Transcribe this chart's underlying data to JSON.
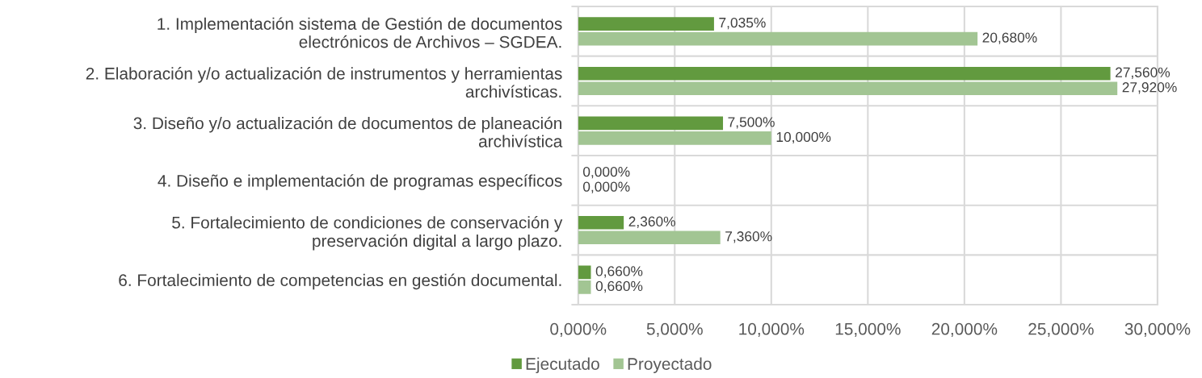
{
  "chart_data": {
    "type": "bar",
    "orientation": "horizontal",
    "categories": [
      "1. Implementación sistema de Gestión de documentos\nelectrónicos de Archivos – SGDEA.",
      "2. Elaboración y/o actualización de instrumentos y herramientas\narchivísticas.",
      "3. Diseño y/o actualización de documentos de planeación\narchivística",
      "4. Diseño e implementación de programas específicos",
      "5. Fortalecimiento de condiciones de conservación y\npreservación digital a largo plazo.",
      "6. Fortalecimiento de competencias en gestión documental."
    ],
    "series": [
      {
        "name": "Ejecutado",
        "color": "#629a3f",
        "values": [
          7.035,
          27.56,
          7.5,
          0,
          2.36,
          0.66
        ],
        "value_labels": [
          "7,035%",
          "27,560%",
          "7,500%",
          "0,000%",
          "2,360%",
          "0,660%"
        ]
      },
      {
        "name": "Proyectado",
        "color": "#a2c593",
        "values": [
          20.68,
          27.92,
          10,
          0,
          7.36,
          0.66
        ],
        "value_labels": [
          "20,680%",
          "27,920%",
          "10,000%",
          "0,000%",
          "7,360%",
          "0,660%"
        ]
      }
    ],
    "xlim": [
      0,
      30
    ],
    "xticks": [
      {
        "value": 0,
        "label": "0,000%"
      },
      {
        "value": 5,
        "label": "5,000%"
      },
      {
        "value": 10,
        "label": "10,000%"
      },
      {
        "value": 15,
        "label": "15,000%"
      },
      {
        "value": 20,
        "label": "20,000%"
      },
      {
        "value": 25,
        "label": "25,000%"
      },
      {
        "value": 30,
        "label": "30,000%"
      }
    ],
    "grid": true,
    "legend": "bottom"
  }
}
